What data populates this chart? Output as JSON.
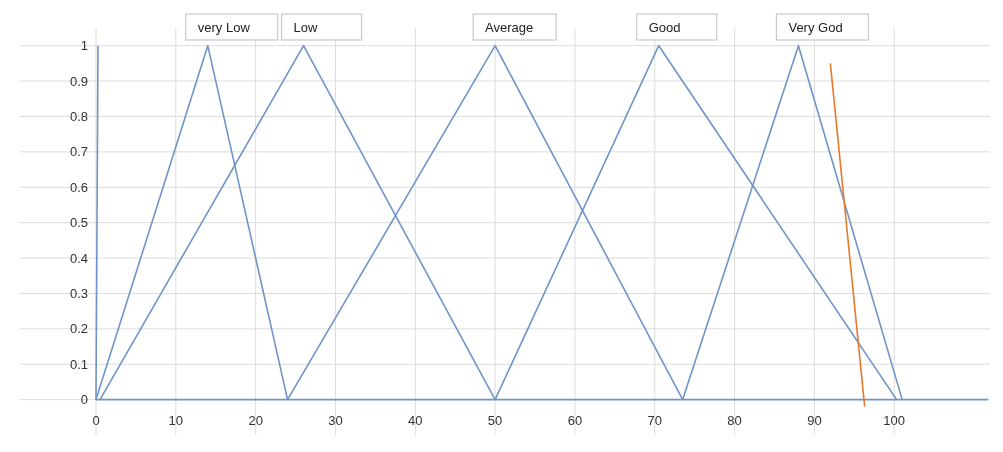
{
  "chart_data": {
    "type": "line",
    "xlim": [
      0,
      112
    ],
    "ylim": [
      -0.1,
      1.05
    ],
    "xticks": [
      0,
      10,
      20,
      30,
      40,
      50,
      60,
      70,
      80,
      90,
      100
    ],
    "yticks": [
      0,
      0.1,
      0.2,
      0.3,
      0.4,
      0.5,
      0.6,
      0.7,
      0.8,
      0.9,
      1
    ],
    "grid": true,
    "series": [
      {
        "color": "#6f95c8",
        "x": [
          0.25,
          0,
          111.75
        ],
        "values": [
          1,
          0,
          0
        ]
      },
      {
        "name": "very Low",
        "color": "#6f95c8",
        "x": [
          0,
          14,
          24
        ],
        "values": [
          0,
          1,
          0
        ]
      },
      {
        "name": "Low",
        "color": "#6f95c8",
        "x": [
          0.5,
          26,
          50
        ],
        "values": [
          0,
          1,
          0
        ]
      },
      {
        "name": "Average",
        "color": "#6f95c8",
        "x": [
          24,
          50,
          73.5
        ],
        "values": [
          0,
          1,
          0
        ]
      },
      {
        "name": "Good",
        "color": "#6f95c8",
        "x": [
          50,
          70.5,
          100.3
        ],
        "values": [
          0,
          1,
          0
        ]
      },
      {
        "name": "Very God",
        "color": "#6f95c8",
        "x": [
          73.5,
          88,
          101
        ],
        "values": [
          0,
          1,
          0
        ]
      },
      {
        "color": "#e8782a",
        "x": [
          92,
          96.3
        ],
        "values": [
          0.95,
          -0.02
        ]
      }
    ]
  }
}
